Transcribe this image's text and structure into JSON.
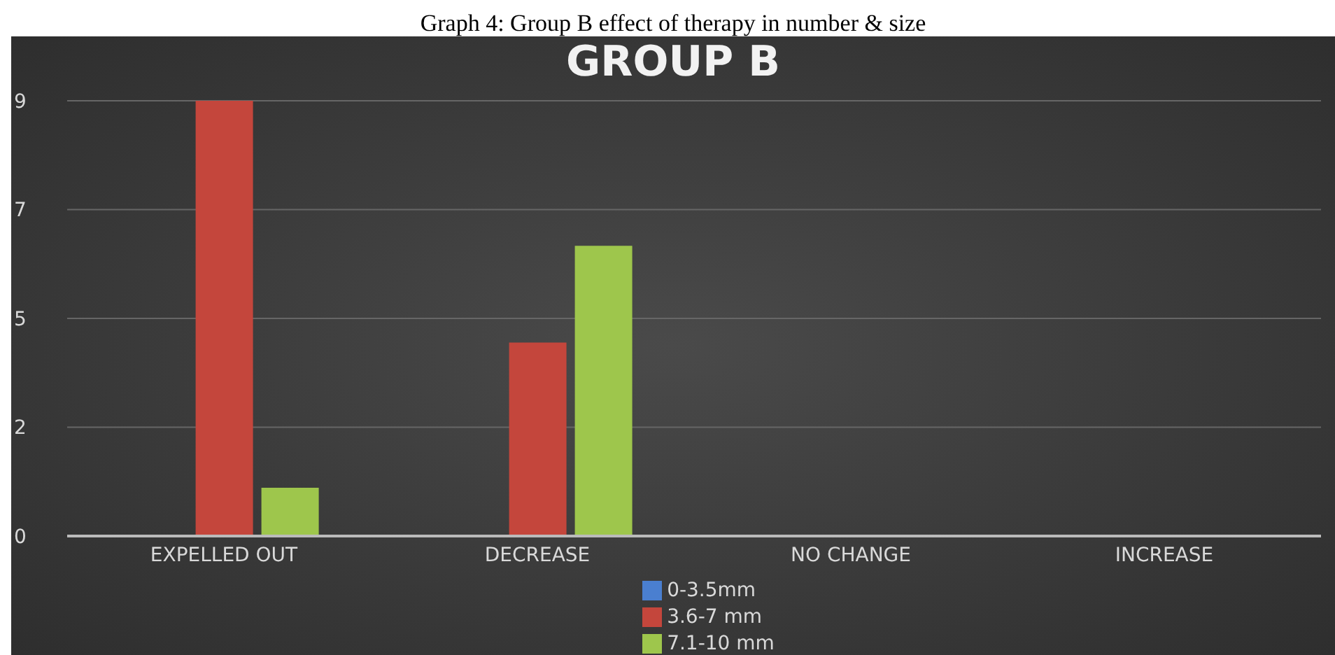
{
  "chart_data": {
    "type": "bar",
    "title": "GROUP B",
    "annotations": [
      "Graph 4: Group B effect of therapy in number & size"
    ],
    "categories": [
      "EXPELLED OUT",
      "DECREASE",
      "NO CHANGE",
      "INCREASE"
    ],
    "series": [
      {
        "name": "0-3.5mm",
        "color": "#4a7fd0",
        "values": [
          0,
          0,
          0,
          0
        ]
      },
      {
        "name": "3.6-7 mm",
        "color": "#c4463c",
        "values": [
          9,
          4,
          0,
          0
        ]
      },
      {
        "name": "7.1-10 mm",
        "color": "#9ec64c",
        "values": [
          1,
          6,
          0,
          0
        ]
      }
    ],
    "ylim": [
      0,
      9
    ],
    "yticks": [
      0,
      {
        "value": 2.25,
        "label": "2"
      },
      {
        "value": 4.5,
        "label": "5"
      },
      {
        "value": 6.75,
        "label": "7"
      },
      9
    ],
    "grid": "y",
    "legend": "bottom"
  }
}
